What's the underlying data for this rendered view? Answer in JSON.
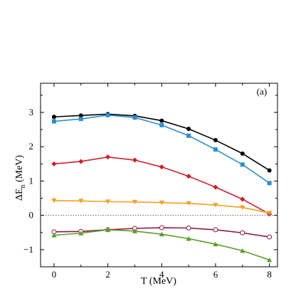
{
  "chart_data": {
    "type": "line",
    "panel_label": "(a)",
    "xlabel": "T (MeV)",
    "ylabel_main": "ΔE",
    "ylabel_sub": "n",
    "ylabel_unit": " (MeV)",
    "xlim": [
      -0.5,
      8.3
    ],
    "ylim": [
      -1.5,
      3.85
    ],
    "x_ticks": [
      0,
      2,
      4,
      6,
      8
    ],
    "y_ticks": [
      -1,
      0,
      1,
      2,
      3
    ],
    "x_tick_labels": [
      "0",
      "2",
      "4",
      "6",
      "8"
    ],
    "y_tick_labels": [
      "−1",
      "0",
      "1",
      "2",
      "3"
    ],
    "zero_line": {
      "y": 0,
      "style": "dotted"
    },
    "grid": false,
    "legend": "none",
    "x": [
      0,
      1,
      2,
      3,
      4,
      5,
      6,
      7,
      8
    ],
    "series": [
      {
        "color": "#000000",
        "marker": "circle",
        "values": [
          2.87,
          2.91,
          2.95,
          2.9,
          2.76,
          2.52,
          2.19,
          1.8,
          1.31
        ]
      },
      {
        "color": "#2a8fd0",
        "marker": "square",
        "values": [
          2.74,
          2.81,
          2.92,
          2.85,
          2.63,
          2.32,
          1.92,
          1.48,
          0.94
        ]
      },
      {
        "color": "#d0202a",
        "marker": "diamond",
        "values": [
          1.5,
          1.57,
          1.7,
          1.61,
          1.41,
          1.14,
          0.82,
          0.47,
          0.04
        ]
      },
      {
        "color": "#f5a020",
        "marker": "triangle-down",
        "values": [
          0.43,
          0.42,
          0.4,
          0.39,
          0.37,
          0.35,
          0.3,
          0.23,
          0.07
        ]
      },
      {
        "color": "#8a1a3a",
        "marker": "open-circle",
        "values": [
          -0.48,
          -0.47,
          -0.42,
          -0.38,
          -0.36,
          -0.37,
          -0.42,
          -0.51,
          -0.63
        ]
      },
      {
        "color": "#5aa02a",
        "marker": "triangle-up",
        "values": [
          -0.58,
          -0.52,
          -0.42,
          -0.46,
          -0.55,
          -0.68,
          -0.84,
          -1.03,
          -1.3
        ]
      }
    ]
  }
}
